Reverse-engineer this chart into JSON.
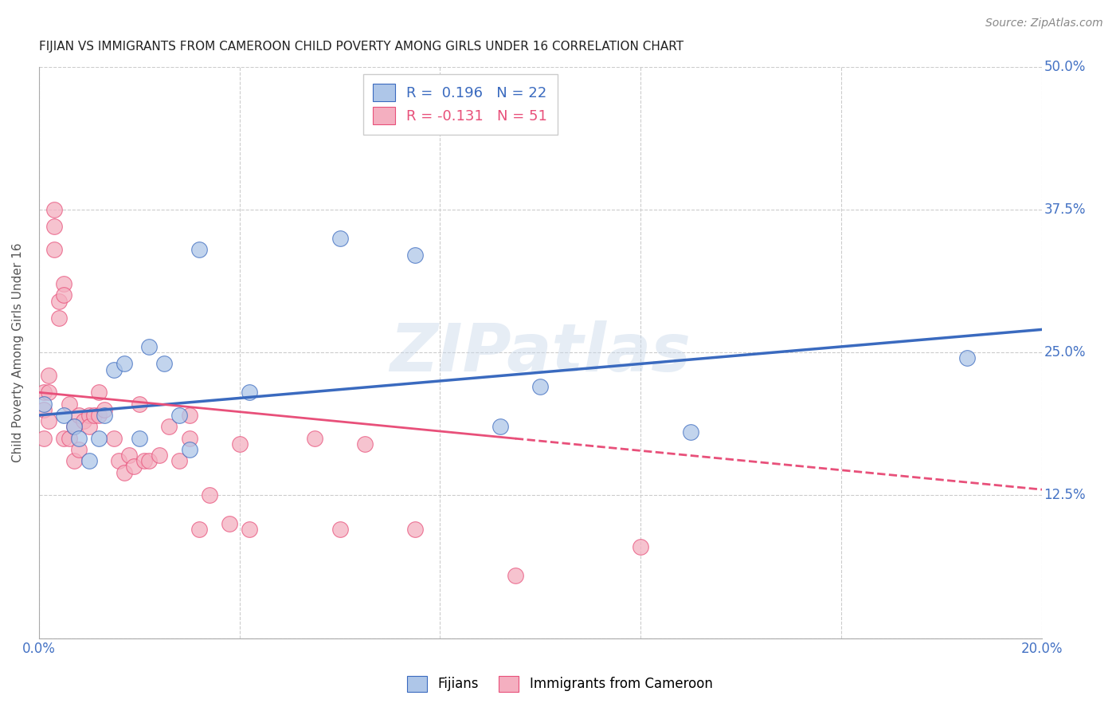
{
  "title": "FIJIAN VS IMMIGRANTS FROM CAMEROON CHILD POVERTY AMONG GIRLS UNDER 16 CORRELATION CHART",
  "source": "Source: ZipAtlas.com",
  "ylabel": "Child Poverty Among Girls Under 16",
  "xlabel": "",
  "xlim": [
    0.0,
    0.2
  ],
  "ylim": [
    0.0,
    0.5
  ],
  "xticks": [
    0.0,
    0.04,
    0.08,
    0.12,
    0.16,
    0.2
  ],
  "yticks": [
    0.0,
    0.125,
    0.25,
    0.375,
    0.5
  ],
  "xtick_labels": [
    "0.0%",
    "",
    "",
    "",
    "",
    "20.0%"
  ],
  "ytick_labels": [
    "",
    "12.5%",
    "25.0%",
    "37.5%",
    "50.0%"
  ],
  "fijians_R": 0.196,
  "fijians_N": 22,
  "cameroon_R": -0.131,
  "cameroon_N": 51,
  "fijians_color": "#aec6e8",
  "cameroon_color": "#f4afc0",
  "fijians_line_color": "#3a6abf",
  "cameroon_line_color": "#e8507a",
  "watermark": "ZIPatlas",
  "fijians_x": [
    0.001,
    0.005,
    0.007,
    0.008,
    0.01,
    0.012,
    0.013,
    0.015,
    0.017,
    0.02,
    0.022,
    0.025,
    0.028,
    0.03,
    0.032,
    0.042,
    0.06,
    0.075,
    0.092,
    0.1,
    0.13,
    0.185
  ],
  "fijians_y": [
    0.205,
    0.195,
    0.185,
    0.175,
    0.155,
    0.175,
    0.195,
    0.235,
    0.24,
    0.175,
    0.255,
    0.24,
    0.195,
    0.165,
    0.34,
    0.215,
    0.35,
    0.335,
    0.185,
    0.22,
    0.18,
    0.245
  ],
  "cameroon_x": [
    0.001,
    0.001,
    0.001,
    0.002,
    0.002,
    0.002,
    0.003,
    0.003,
    0.003,
    0.004,
    0.004,
    0.005,
    0.005,
    0.005,
    0.006,
    0.006,
    0.007,
    0.007,
    0.008,
    0.008,
    0.009,
    0.01,
    0.01,
    0.011,
    0.012,
    0.012,
    0.013,
    0.015,
    0.016,
    0.017,
    0.018,
    0.019,
    0.02,
    0.021,
    0.022,
    0.024,
    0.026,
    0.028,
    0.03,
    0.03,
    0.032,
    0.034,
    0.038,
    0.04,
    0.042,
    0.055,
    0.06,
    0.065,
    0.075,
    0.095,
    0.12
  ],
  "cameroon_y": [
    0.215,
    0.2,
    0.175,
    0.23,
    0.215,
    0.19,
    0.375,
    0.36,
    0.34,
    0.295,
    0.28,
    0.31,
    0.3,
    0.175,
    0.175,
    0.205,
    0.185,
    0.155,
    0.195,
    0.165,
    0.19,
    0.195,
    0.185,
    0.195,
    0.215,
    0.195,
    0.2,
    0.175,
    0.155,
    0.145,
    0.16,
    0.15,
    0.205,
    0.155,
    0.155,
    0.16,
    0.185,
    0.155,
    0.195,
    0.175,
    0.095,
    0.125,
    0.1,
    0.17,
    0.095,
    0.175,
    0.095,
    0.17,
    0.095,
    0.055,
    0.08
  ],
  "title_color": "#222222",
  "axis_label_color": "#555555",
  "grid_color": "#cccccc",
  "fij_line_x0": 0.0,
  "fij_line_y0": 0.195,
  "fij_line_x1": 0.2,
  "fij_line_y1": 0.27,
  "cam_line_x0": 0.0,
  "cam_line_y0": 0.215,
  "cam_line_x1_solid": 0.095,
  "cam_line_x1": 0.2,
  "cam_line_y1": 0.13
}
